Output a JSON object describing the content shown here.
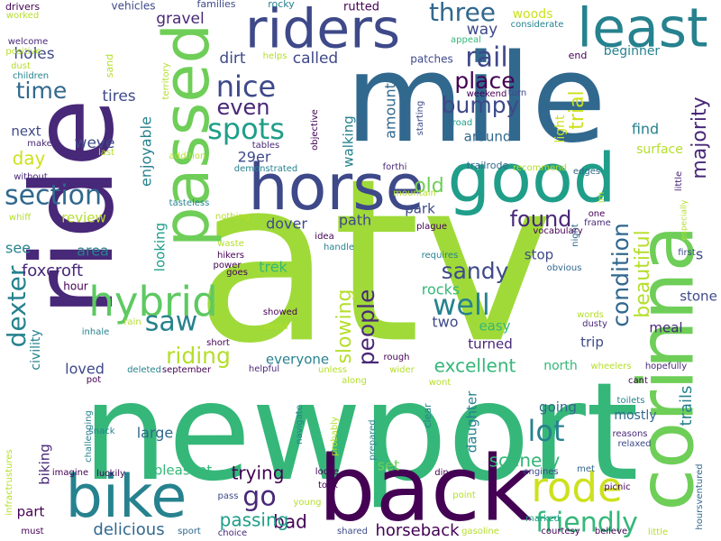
{
  "words": [
    {
      "text": "atv",
      "color": "#a0da39"
    },
    {
      "text": "newport",
      "color": "#35b779"
    },
    {
      "text": "mile",
      "color": "#31688e"
    },
    {
      "text": "ride",
      "color": "#482878"
    },
    {
      "text": "corinna",
      "color": "#6ece58"
    },
    {
      "text": "back",
      "color": "#440154"
    },
    {
      "text": "horse",
      "color": "#3e4989"
    },
    {
      "text": "good",
      "color": "#1f9e89"
    },
    {
      "text": "passed",
      "color": "#6ece58"
    },
    {
      "text": "riders",
      "color": "#3e4989"
    },
    {
      "text": "least",
      "color": "#26828e"
    },
    {
      "text": "bike",
      "color": "#26828e"
    },
    {
      "text": "hybrid",
      "color": "#5ec962"
    },
    {
      "text": "rode",
      "color": "#cde11d"
    },
    {
      "text": "friendly",
      "color": "#35b779"
    },
    {
      "text": "three",
      "color": "#31688e"
    },
    {
      "text": "rail",
      "color": "#3e4989"
    },
    {
      "text": "nice",
      "color": "#3e4989"
    },
    {
      "text": "spots",
      "color": "#1f9e89"
    },
    {
      "text": "section",
      "color": "#31688e"
    },
    {
      "text": "condition",
      "color": "#31688e"
    },
    {
      "text": "dexter",
      "color": "#26828e"
    },
    {
      "text": "lot",
      "color": "#26828e"
    },
    {
      "text": "well",
      "color": "#26828e"
    },
    {
      "text": "saw",
      "color": "#26828e"
    },
    {
      "text": "go",
      "color": "#482878"
    },
    {
      "text": "riding",
      "color": "#b5de2b"
    },
    {
      "text": "time",
      "color": "#31688e"
    },
    {
      "text": "bumpy",
      "color": "#3e4989"
    },
    {
      "text": "place",
      "color": "#440154"
    },
    {
      "text": "even",
      "color": "#482878"
    },
    {
      "text": "found",
      "color": "#482878"
    },
    {
      "text": "sandy",
      "color": "#3e4989"
    },
    {
      "text": "people",
      "color": "#482878"
    },
    {
      "text": "slowing",
      "color": "#b5de2b"
    },
    {
      "text": "excellent",
      "color": "#35b779"
    },
    {
      "text": "scenery",
      "color": "#35b779"
    },
    {
      "text": "beautiful",
      "color": "#b5de2b"
    },
    {
      "text": "majority",
      "color": "#482878"
    },
    {
      "text": "trial",
      "color": "#cde11d"
    },
    {
      "text": "old",
      "color": "#6ece58"
    },
    {
      "text": "bad",
      "color": "#440154"
    },
    {
      "text": "trying",
      "color": "#440154"
    },
    {
      "text": "passing",
      "color": "#1f9e89"
    },
    {
      "text": "delicious",
      "color": "#31688e"
    },
    {
      "text": "horseback",
      "color": "#440154"
    },
    {
      "text": "trails",
      "color": "#26828e"
    },
    {
      "text": "day",
      "color": "#cde11d"
    },
    {
      "text": "weve",
      "color": "#3e4989"
    },
    {
      "text": "tires",
      "color": "#3e4989"
    },
    {
      "text": "called",
      "color": "#3e4989"
    },
    {
      "text": "dirt",
      "color": "#3e4989"
    },
    {
      "text": "gravel",
      "color": "#482878"
    },
    {
      "text": "holes",
      "color": "#3e4989"
    },
    {
      "text": "way",
      "color": "#3e4989"
    },
    {
      "text": "woods",
      "color": "#cde11d"
    },
    {
      "text": "beginner",
      "color": "#26828e"
    },
    {
      "text": "around",
      "color": "#31688e"
    },
    {
      "text": "amount",
      "color": "#31688e"
    },
    {
      "text": "find",
      "color": "#26828e"
    },
    {
      "text": "light",
      "color": "#cde11d"
    },
    {
      "text": "surface",
      "color": "#b5de2b"
    },
    {
      "text": "next",
      "color": "#3e4989"
    },
    {
      "text": "29er",
      "color": "#3e4989"
    },
    {
      "text": "walking",
      "color": "#26828e"
    },
    {
      "text": "park",
      "color": "#3e4989"
    },
    {
      "text": "path",
      "color": "#3e4989"
    },
    {
      "text": "dover",
      "color": "#3e4989"
    },
    {
      "text": "stop",
      "color": "#3e4989"
    },
    {
      "text": "area",
      "color": "#26828e"
    },
    {
      "text": "see",
      "color": "#26828e"
    },
    {
      "text": "review",
      "color": "#b5de2b"
    },
    {
      "text": "foxcroft",
      "color": "#482878"
    },
    {
      "text": "looking",
      "color": "#1f9e89"
    },
    {
      "text": "enjoyable",
      "color": "#26828e"
    },
    {
      "text": "trek",
      "color": "#35b779"
    },
    {
      "text": "rocks",
      "color": "#35b779"
    },
    {
      "text": "two",
      "color": "#3e4989"
    },
    {
      "text": "easy",
      "color": "#35b779"
    },
    {
      "text": "turned",
      "color": "#482878"
    },
    {
      "text": "trip",
      "color": "#3e4989"
    },
    {
      "text": "meal",
      "color": "#482878"
    },
    {
      "text": "stone",
      "color": "#3e4989"
    },
    {
      "text": "loved",
      "color": "#3e4989"
    },
    {
      "text": "everyone",
      "color": "#26828e"
    },
    {
      "text": "north",
      "color": "#35b779"
    },
    {
      "text": "civility",
      "color": "#26828e"
    },
    {
      "text": "biking",
      "color": "#482878"
    },
    {
      "text": "large",
      "color": "#31688e"
    },
    {
      "text": "going",
      "color": "#31688e"
    },
    {
      "text": "mostly",
      "color": "#31688e"
    },
    {
      "text": "daughter",
      "color": "#26828e"
    },
    {
      "text": "set",
      "color": "#6ece58"
    },
    {
      "text": "pleasant",
      "color": "#35b779"
    },
    {
      "text": "part",
      "color": "#440154"
    },
    {
      "text": "s",
      "color": "#3e4989"
    },
    {
      "text": "hour",
      "color": "#440154"
    },
    {
      "text": "vehicles",
      "color": "#3e4989"
    },
    {
      "text": "families",
      "color": "#3e4989"
    },
    {
      "text": "rocky",
      "color": "#26828e"
    },
    {
      "text": "rutted",
      "color": "#440154"
    },
    {
      "text": "drivers",
      "color": "#440154"
    },
    {
      "text": "worked",
      "color": "#b5de2b"
    },
    {
      "text": "welcome",
      "color": "#482878"
    },
    {
      "text": "positive",
      "color": "#b5de2b"
    },
    {
      "text": "dust",
      "color": "#b5de2b"
    },
    {
      "text": "children",
      "color": "#26828e"
    },
    {
      "text": "sand",
      "color": "#b5de2b"
    },
    {
      "text": "helps",
      "color": "#b5de2b"
    },
    {
      "text": "patches",
      "color": "#3e4989"
    },
    {
      "text": "appeal",
      "color": "#35b779"
    },
    {
      "text": "considerate",
      "color": "#26828e"
    },
    {
      "text": "end",
      "color": "#440154"
    },
    {
      "text": "territory",
      "color": "#b5de2b"
    },
    {
      "text": "weekend",
      "color": "#440154"
    },
    {
      "text": "turn",
      "color": "#3e4989"
    },
    {
      "text": "road",
      "color": "#1f9e89"
    },
    {
      "text": "objective",
      "color": "#440154"
    },
    {
      "text": "starting",
      "color": "#3e4989"
    },
    {
      "text": "make",
      "color": "#482878"
    },
    {
      "text": "last",
      "color": "#b5de2b"
    },
    {
      "text": "addition",
      "color": "#b5de2b"
    },
    {
      "text": "tables",
      "color": "#482878"
    },
    {
      "text": "without",
      "color": "#482878"
    },
    {
      "text": "demonstrated",
      "color": "#26828e"
    },
    {
      "text": "forthi",
      "color": "#482878"
    },
    {
      "text": "trailrode",
      "color": "#31688e"
    },
    {
      "text": "recommend",
      "color": "#b5de2b"
    },
    {
      "text": "edges",
      "color": "#31688e"
    },
    {
      "text": "little",
      "color": "#482878"
    },
    {
      "text": "whiff",
      "color": "#b5de2b"
    },
    {
      "text": "tasteless",
      "color": "#26828e"
    },
    {
      "text": "mountain",
      "color": "#b5de2b"
    },
    {
      "text": "im",
      "color": "#b5de2b"
    },
    {
      "text": "one",
      "color": "#440154"
    },
    {
      "text": "frame",
      "color": "#482878"
    },
    {
      "text": "especially",
      "color": "#b5de2b"
    },
    {
      "text": "nothing",
      "color": "#b5de2b"
    },
    {
      "text": "plague",
      "color": "#440154"
    },
    {
      "text": "vocabulary",
      "color": "#440154"
    },
    {
      "text": "night",
      "color": "#31688e"
    },
    {
      "text": "hikers",
      "color": "#440154"
    },
    {
      "text": "idea",
      "color": "#440154"
    },
    {
      "text": "handle",
      "color": "#26828e"
    },
    {
      "text": "waste",
      "color": "#b5de2b"
    },
    {
      "text": "requires",
      "color": "#26828e"
    },
    {
      "text": "power",
      "color": "#440154"
    },
    {
      "text": "goes",
      "color": "#440154"
    },
    {
      "text": "obvious",
      "color": "#31688e"
    },
    {
      "text": "first",
      "color": "#3e4989"
    },
    {
      "text": "showed",
      "color": "#440154"
    },
    {
      "text": "avoid",
      "color": "#b5de2b"
    },
    {
      "text": "words",
      "color": "#b5de2b"
    },
    {
      "text": "dusty",
      "color": "#482878"
    },
    {
      "text": "rain",
      "color": "#b5de2b"
    },
    {
      "text": "inhale",
      "color": "#26828e"
    },
    {
      "text": "short",
      "color": "#440154"
    },
    {
      "text": "deleted",
      "color": "#26828e"
    },
    {
      "text": "september",
      "color": "#440154"
    },
    {
      "text": "helpful",
      "color": "#482878"
    },
    {
      "text": "unless",
      "color": "#b5de2b"
    },
    {
      "text": "rough",
      "color": "#440154"
    },
    {
      "text": "wider",
      "color": "#b5de2b"
    },
    {
      "text": "wheelers",
      "color": "#b5de2b"
    },
    {
      "text": "hopefully",
      "color": "#482878"
    },
    {
      "text": "pot",
      "color": "#440154"
    },
    {
      "text": "along",
      "color": "#b5de2b"
    },
    {
      "text": "wont",
      "color": "#b5de2b"
    },
    {
      "text": "cant",
      "color": "#440154"
    },
    {
      "text": "toilets",
      "color": "#26828e"
    },
    {
      "text": "clear",
      "color": "#26828e"
    },
    {
      "text": "met",
      "color": "#31688e"
    },
    {
      "text": "reasons",
      "color": "#482878"
    },
    {
      "text": "relaxed",
      "color": "#3e4989"
    },
    {
      "text": "challenging",
      "color": "#26828e"
    },
    {
      "text": "snack",
      "color": "#26828e"
    },
    {
      "text": "navigate",
      "color": "#26828e"
    },
    {
      "text": "probably",
      "color": "#b5de2b"
    },
    {
      "text": "prepared",
      "color": "#26828e"
    },
    {
      "text": "infractrustures",
      "color": "#b5de2b"
    },
    {
      "text": "imagine",
      "color": "#440154"
    },
    {
      "text": "luckily",
      "color": "#440154"
    },
    {
      "text": "loose",
      "color": "#440154"
    },
    {
      "text": "din",
      "color": "#440154"
    },
    {
      "text": "engines",
      "color": "#3e4989"
    },
    {
      "text": "picnic",
      "color": "#440154"
    },
    {
      "text": "hoursventured",
      "color": "#31688e"
    },
    {
      "text": "pass",
      "color": "#3e4989"
    },
    {
      "text": "young",
      "color": "#b5de2b"
    },
    {
      "text": "took",
      "color": "#440154"
    },
    {
      "text": "point",
      "color": "#b5de2b"
    },
    {
      "text": "marked",
      "color": "#1f9e89"
    },
    {
      "text": "must",
      "color": "#440154"
    },
    {
      "text": "sport",
      "color": "#31688e"
    },
    {
      "text": "choice",
      "color": "#482878"
    },
    {
      "text": "shared",
      "color": "#3e4989"
    },
    {
      "text": "gasoline",
      "color": "#b5de2b"
    },
    {
      "text": "courtesy",
      "color": "#440154"
    },
    {
      "text": "believe",
      "color": "#440154"
    },
    {
      "text": "little",
      "color": "#b5de2b"
    }
  ]
}
